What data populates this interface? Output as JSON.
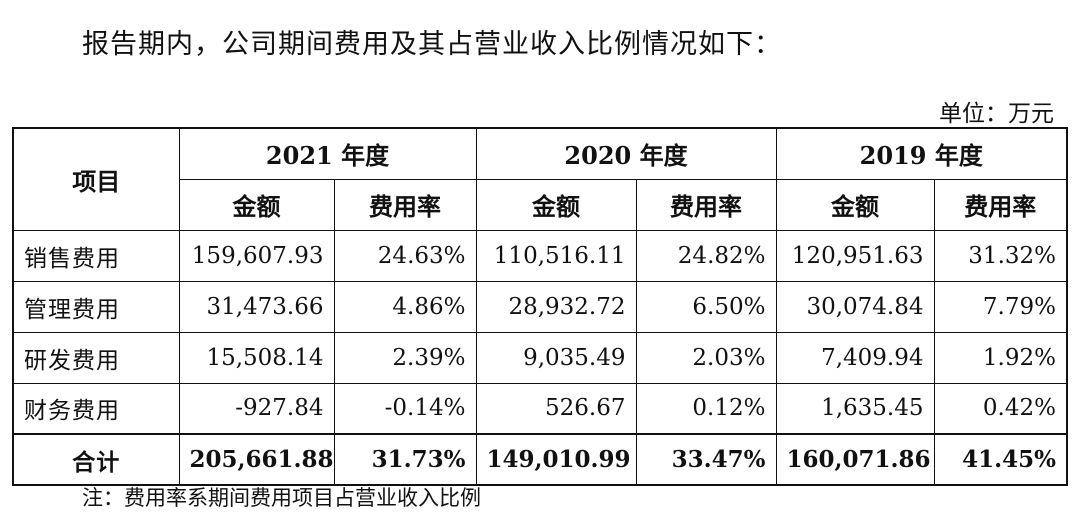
{
  "intro": "报告期内，公司期间费用及其占营业收入比例情况如下：",
  "unit": "单位：万元",
  "table": {
    "item_header": "项目",
    "years": [
      "2021 年度",
      "2020 年度",
      "2019 年度"
    ],
    "sub_headers": [
      "金额",
      "费用率"
    ],
    "rows": [
      {
        "label": "销售费用",
        "cells": [
          "159,607.93",
          "24.63%",
          "110,516.11",
          "24.82%",
          "120,951.63",
          "31.32%"
        ]
      },
      {
        "label": "管理费用",
        "cells": [
          "31,473.66",
          "4.86%",
          "28,932.72",
          "6.50%",
          "30,074.84",
          "7.79%"
        ]
      },
      {
        "label": "研发费用",
        "cells": [
          "15,508.14",
          "2.39%",
          "9,035.49",
          "2.03%",
          "7,409.94",
          "1.92%"
        ]
      },
      {
        "label": "财务费用",
        "cells": [
          "-927.84",
          "-0.14%",
          "526.67",
          "0.12%",
          "1,635.45",
          "0.42%"
        ]
      }
    ],
    "total": {
      "label": "合计",
      "cells": [
        "205,661.88",
        "31.73%",
        "149,010.99",
        "33.47%",
        "160,071.86",
        "41.45%"
      ]
    }
  },
  "note": "注：费用率系期间费用项目占营业收入比例"
}
